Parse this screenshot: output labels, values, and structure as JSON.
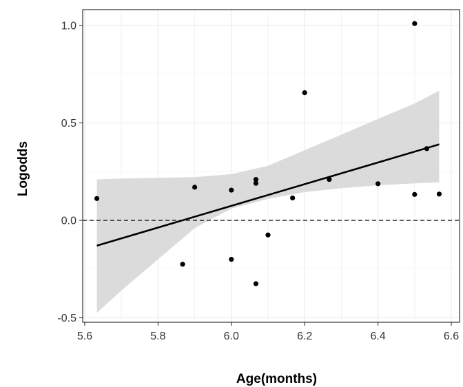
{
  "chart_data": {
    "type": "scatter",
    "title": "",
    "xlabel": "Age(months)",
    "ylabel": "Logodds",
    "xlim": [
      5.6,
      6.6
    ],
    "ylim": [
      -0.5,
      1.0
    ],
    "x_ticks": [
      "5.6",
      "5.8",
      "6.0",
      "6.2",
      "6.4",
      "6.6"
    ],
    "y_ticks": [
      "-0.5",
      "0.0",
      "0.5",
      "1.0"
    ],
    "grid": true,
    "legend": "none",
    "points": [
      {
        "x": 5.633,
        "y": 0.112
      },
      {
        "x": 5.867,
        "y": -0.225
      },
      {
        "x": 5.9,
        "y": 0.17
      },
      {
        "x": 6.0,
        "y": 0.155
      },
      {
        "x": 6.0,
        "y": -0.2
      },
      {
        "x": 6.067,
        "y": 0.21
      },
      {
        "x": 6.067,
        "y": 0.19
      },
      {
        "x": 6.067,
        "y": -0.325
      },
      {
        "x": 6.1,
        "y": -0.075
      },
      {
        "x": 6.167,
        "y": 0.115
      },
      {
        "x": 6.2,
        "y": 0.655
      },
      {
        "x": 6.267,
        "y": 0.21
      },
      {
        "x": 6.4,
        "y": 0.188
      },
      {
        "x": 6.5,
        "y": 0.133
      },
      {
        "x": 6.5,
        "y": 1.01
      },
      {
        "x": 6.533,
        "y": 0.368
      },
      {
        "x": 6.567,
        "y": 0.135
      }
    ],
    "fit_line": {
      "x": [
        5.633,
        6.567
      ],
      "y": [
        -0.13,
        0.39
      ]
    },
    "confidence_band": {
      "x": [
        5.633,
        5.7,
        5.8,
        5.9,
        6.0,
        6.1,
        6.2,
        6.3,
        6.4,
        6.5,
        6.567
      ],
      "upper": [
        0.21,
        0.215,
        0.218,
        0.222,
        0.237,
        0.28,
        0.36,
        0.44,
        0.52,
        0.6,
        0.665
      ],
      "lower": [
        -0.475,
        -0.36,
        -0.2,
        -0.04,
        0.06,
        0.11,
        0.145,
        0.165,
        0.18,
        0.19,
        0.195
      ]
    },
    "reference_line": {
      "y": 0,
      "style": "dashed"
    },
    "colors": {
      "points": "#000000",
      "fit_line": "#000000",
      "band": "#d9d9d9",
      "grid": "#ebebeb",
      "panel_border": "#333333"
    }
  }
}
